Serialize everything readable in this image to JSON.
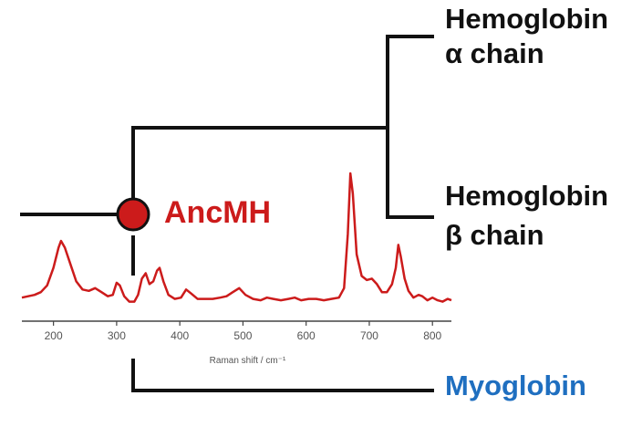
{
  "tree": {
    "leaves": {
      "hemoglobin_alpha": [
        "Hemoglobin",
        "α chain"
      ],
      "hemoglobin_beta": [
        "Hemoglobin",
        "β chain"
      ],
      "myoglobin": "Myoglobin"
    },
    "ancestor_label": "AncMH"
  },
  "colors": {
    "tree_lines": "#111111",
    "ancestor": "#cc1b1b",
    "spectrum": "#cc1b1b",
    "myoglobin": "#1f6fc0",
    "axis": "#444444"
  },
  "spectrum": {
    "xlabel": "Raman shift / cm⁻¹",
    "xticks": [
      200,
      300,
      400,
      500,
      600,
      700,
      800
    ],
    "xlim": [
      150,
      830
    ],
    "points": [
      [
        150,
        0.08
      ],
      [
        160,
        0.09
      ],
      [
        170,
        0.1
      ],
      [
        180,
        0.12
      ],
      [
        190,
        0.17
      ],
      [
        200,
        0.3
      ],
      [
        208,
        0.45
      ],
      [
        212,
        0.5
      ],
      [
        218,
        0.45
      ],
      [
        226,
        0.34
      ],
      [
        236,
        0.2
      ],
      [
        246,
        0.14
      ],
      [
        256,
        0.13
      ],
      [
        266,
        0.15
      ],
      [
        276,
        0.12
      ],
      [
        286,
        0.09
      ],
      [
        294,
        0.1
      ],
      [
        300,
        0.19
      ],
      [
        305,
        0.17
      ],
      [
        312,
        0.09
      ],
      [
        320,
        0.05
      ],
      [
        328,
        0.05
      ],
      [
        334,
        0.1
      ],
      [
        340,
        0.22
      ],
      [
        346,
        0.26
      ],
      [
        352,
        0.18
      ],
      [
        358,
        0.2
      ],
      [
        364,
        0.28
      ],
      [
        368,
        0.3
      ],
      [
        374,
        0.2
      ],
      [
        382,
        0.1
      ],
      [
        392,
        0.07
      ],
      [
        402,
        0.08
      ],
      [
        410,
        0.14
      ],
      [
        418,
        0.11
      ],
      [
        428,
        0.07
      ],
      [
        440,
        0.07
      ],
      [
        452,
        0.07
      ],
      [
        464,
        0.08
      ],
      [
        474,
        0.09
      ],
      [
        484,
        0.12
      ],
      [
        494,
        0.15
      ],
      [
        504,
        0.1
      ],
      [
        516,
        0.07
      ],
      [
        528,
        0.06
      ],
      [
        538,
        0.08
      ],
      [
        548,
        0.07
      ],
      [
        560,
        0.06
      ],
      [
        572,
        0.07
      ],
      [
        582,
        0.08
      ],
      [
        592,
        0.06
      ],
      [
        604,
        0.07
      ],
      [
        616,
        0.07
      ],
      [
        628,
        0.06
      ],
      [
        640,
        0.07
      ],
      [
        652,
        0.08
      ],
      [
        660,
        0.15
      ],
      [
        666,
        0.55
      ],
      [
        670,
        1.0
      ],
      [
        674,
        0.85
      ],
      [
        680,
        0.4
      ],
      [
        688,
        0.24
      ],
      [
        696,
        0.21
      ],
      [
        704,
        0.22
      ],
      [
        712,
        0.18
      ],
      [
        720,
        0.12
      ],
      [
        728,
        0.12
      ],
      [
        736,
        0.18
      ],
      [
        742,
        0.3
      ],
      [
        746,
        0.47
      ],
      [
        750,
        0.38
      ],
      [
        756,
        0.22
      ],
      [
        762,
        0.13
      ],
      [
        770,
        0.08
      ],
      [
        778,
        0.1
      ],
      [
        784,
        0.09
      ],
      [
        792,
        0.06
      ],
      [
        800,
        0.08
      ],
      [
        808,
        0.06
      ],
      [
        816,
        0.05
      ],
      [
        824,
        0.07
      ],
      [
        830,
        0.06
      ]
    ]
  }
}
